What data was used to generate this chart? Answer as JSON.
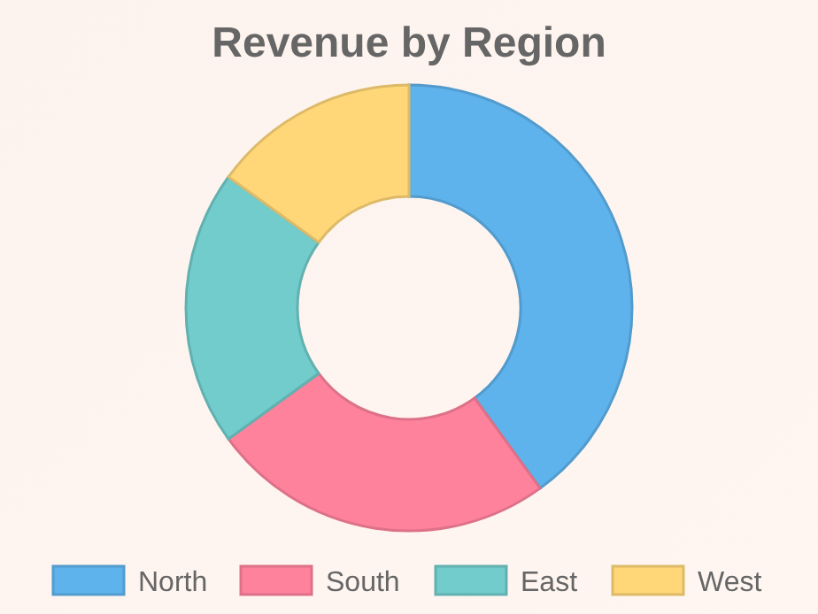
{
  "chart_data": {
    "type": "donut",
    "title": "Revenue by Region",
    "categories": [
      "North",
      "South",
      "East",
      "West"
    ],
    "values": [
      40,
      25,
      20,
      15
    ],
    "colors": [
      "#5eb3ec",
      "#ff829d",
      "#71cccb",
      "#ffd778"
    ],
    "legend": "bottom"
  }
}
